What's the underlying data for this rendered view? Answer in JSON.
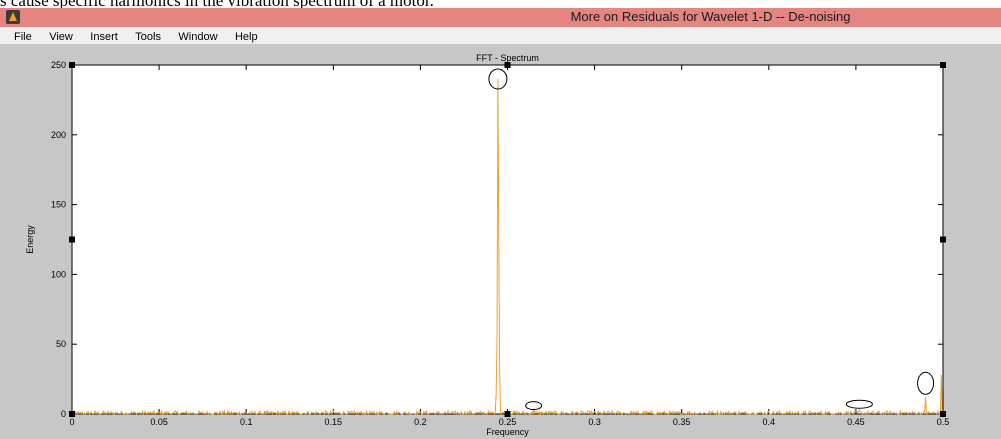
{
  "page_caption": "s cause specific harmonics in the vibration spectrum of a motor.",
  "window": {
    "title": "More on Residuals for Wavelet 1-D  --  De-noising",
    "icon": "matlab-figure-icon"
  },
  "menu": [
    "File",
    "View",
    "Insert",
    "Tools",
    "Window",
    "Help"
  ],
  "colors": {
    "titlebar": "#e58582",
    "figure_bg": "#c7c7c7",
    "series": "#f0a030",
    "annotation": "#000000"
  },
  "chart_data": {
    "type": "line",
    "title": "FFT - Spectrum",
    "xlabel": "Frequency",
    "ylabel": "Energy",
    "xlim": [
      0,
      0.5
    ],
    "ylim": [
      0,
      250
    ],
    "xticks": [
      0,
      0.05,
      0.1,
      0.15,
      0.2,
      0.25,
      0.3,
      0.35,
      0.4,
      0.45,
      0.5
    ],
    "xtick_labels": [
      "0",
      "0.05",
      "0.1",
      "0.15",
      "0.2",
      "0.25",
      "0.3",
      "0.35",
      "0.4",
      "0.45",
      "0.5"
    ],
    "yticks": [
      0,
      50,
      100,
      150,
      200,
      250
    ],
    "ytick_labels": [
      "0",
      "50",
      "100",
      "150",
      "200",
      "250"
    ],
    "grid": false,
    "noise_floor_max": 4,
    "peaks": [
      {
        "x": 0.2445,
        "y": 240
      },
      {
        "x": 0.245,
        "y": 125
      },
      {
        "x": 0.244,
        "y": 55
      },
      {
        "x": 0.2455,
        "y": 30
      },
      {
        "x": 0.2435,
        "y": 15
      },
      {
        "x": 0.265,
        "y": 4
      },
      {
        "x": 0.452,
        "y": 3
      },
      {
        "x": 0.49,
        "y": 12
      },
      {
        "x": 0.499,
        "y": 28
      }
    ],
    "highlighted_points": [
      {
        "x": 0.2445,
        "y": 240
      },
      {
        "x": 0.265,
        "y": 6
      },
      {
        "x": 0.452,
        "y": 7
      },
      {
        "x": 0.49,
        "y": 22
      }
    ]
  }
}
